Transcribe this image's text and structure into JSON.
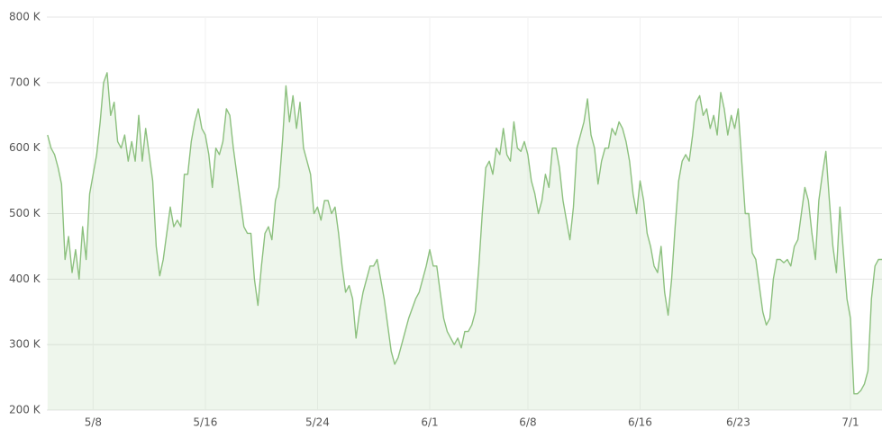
{
  "chart_data": {
    "type": "area",
    "x": [
      4.75,
      5,
      5.25,
      5.5,
      5.75,
      6,
      6.25,
      6.5,
      6.75,
      7,
      7.25,
      7.5,
      7.75,
      8,
      8.25,
      8.5,
      8.75,
      9,
      9.25,
      9.5,
      9.75,
      10,
      10.25,
      10.5,
      10.75,
      11,
      11.25,
      11.5,
      11.75,
      12,
      12.25,
      12.5,
      12.75,
      13,
      13.25,
      13.5,
      13.75,
      14,
      14.25,
      14.5,
      14.75,
      15,
      15.25,
      15.5,
      15.75,
      16,
      16.25,
      16.5,
      16.75,
      17,
      17.25,
      17.5,
      17.75,
      18,
      18.25,
      18.5,
      18.75,
      19,
      19.25,
      19.5,
      19.75,
      20,
      20.25,
      20.5,
      20.75,
      21,
      21.25,
      21.5,
      21.75,
      22,
      22.25,
      22.5,
      22.75,
      23,
      23.25,
      23.5,
      23.75,
      24,
      24.25,
      24.5,
      24.75,
      25,
      25.25,
      25.5,
      25.75,
      26,
      26.25,
      26.5,
      26.75,
      27,
      27.25,
      27.5,
      27.75,
      28,
      28.25,
      28.5,
      28.75,
      29,
      29.25,
      29.5,
      29.75,
      30,
      30.25,
      30.5,
      30.75,
      31,
      31.25,
      31.5,
      31.75,
      32,
      32.25,
      32.5,
      32.75,
      33,
      33.25,
      33.5,
      33.75,
      34,
      34.25,
      34.5,
      34.75,
      35,
      35.25,
      35.5,
      35.75,
      36,
      36.25,
      36.5,
      36.75,
      37,
      37.25,
      37.5,
      37.75,
      38,
      38.25,
      38.5,
      38.75,
      39,
      39.25,
      39.5,
      39.75,
      40,
      40.25,
      40.5,
      40.75,
      41,
      41.25,
      41.5,
      41.75,
      42,
      42.25,
      42.5,
      42.75,
      43,
      43.25,
      43.5,
      43.75,
      44,
      44.25,
      44.5,
      44.75,
      45,
      45.25,
      45.5,
      45.75,
      46,
      46.25,
      46.5,
      46.75,
      47,
      47.25,
      47.5,
      47.75,
      48,
      48.25,
      48.5,
      48.75,
      49,
      49.25,
      49.5,
      49.75,
      50,
      50.25,
      50.5,
      50.75,
      51,
      51.25,
      51.5,
      51.75,
      52,
      52.25,
      52.5,
      52.75,
      53,
      53.25,
      53.5,
      53.75,
      54,
      54.25,
      54.5,
      54.75,
      55,
      55.25,
      55.5,
      55.75,
      56,
      56.25,
      56.5,
      56.75,
      57,
      57.25,
      57.5,
      57.75,
      58,
      58.25,
      58.5,
      58.75,
      59,
      59.25,
      59.5,
      59.75,
      60,
      60.25,
      60.5,
      60.75,
      61,
      61.25,
      61.5,
      61.75,
      62,
      62.25,
      62.5,
      62.75,
      63,
      63.25,
      63.5,
      63.75,
      64,
      64.25
    ],
    "values": [
      620000,
      600000,
      590000,
      570000,
      545000,
      430000,
      465000,
      410000,
      445000,
      400000,
      480000,
      430000,
      530000,
      560000,
      590000,
      640000,
      700000,
      715000,
      650000,
      670000,
      610000,
      600000,
      620000,
      580000,
      610000,
      580000,
      650000,
      580000,
      630000,
      590000,
      550000,
      450000,
      405000,
      430000,
      470000,
      510000,
      480000,
      490000,
      480000,
      560000,
      560000,
      610000,
      640000,
      660000,
      630000,
      620000,
      590000,
      540000,
      600000,
      590000,
      610000,
      660000,
      650000,
      600000,
      560000,
      520000,
      480000,
      470000,
      470000,
      400000,
      360000,
      420000,
      470000,
      480000,
      460000,
      520000,
      540000,
      610000,
      695000,
      640000,
      680000,
      630000,
      670000,
      600000,
      580000,
      560000,
      500000,
      510000,
      490000,
      520000,
      520000,
      500000,
      510000,
      470000,
      420000,
      380000,
      390000,
      370000,
      310000,
      350000,
      380000,
      400000,
      420000,
      420000,
      430000,
      400000,
      370000,
      330000,
      290000,
      270000,
      280000,
      300000,
      320000,
      340000,
      355000,
      370000,
      380000,
      400000,
      420000,
      445000,
      420000,
      420000,
      380000,
      340000,
      320000,
      310000,
      300000,
      310000,
      295000,
      320000,
      320000,
      330000,
      350000,
      420000,
      500000,
      570000,
      580000,
      560000,
      600000,
      590000,
      630000,
      590000,
      580000,
      640000,
      600000,
      595000,
      610000,
      590000,
      550000,
      530000,
      500000,
      520000,
      560000,
      540000,
      600000,
      600000,
      570000,
      520000,
      490000,
      460000,
      510000,
      600000,
      620000,
      640000,
      675000,
      620000,
      600000,
      545000,
      580000,
      600000,
      600000,
      630000,
      620000,
      640000,
      630000,
      610000,
      580000,
      530000,
      500000,
      550000,
      520000,
      470000,
      450000,
      420000,
      410000,
      450000,
      380000,
      345000,
      400000,
      480000,
      550000,
      580000,
      590000,
      580000,
      620000,
      670000,
      680000,
      650000,
      660000,
      630000,
      650000,
      620000,
      685000,
      660000,
      620000,
      650000,
      630000,
      660000,
      580000,
      500000,
      500000,
      440000,
      430000,
      390000,
      350000,
      330000,
      340000,
      400000,
      430000,
      430000,
      425000,
      430000,
      420000,
      450000,
      460000,
      500000,
      540000,
      520000,
      470000,
      430000,
      520000,
      560000,
      595000,
      520000,
      450000,
      410000,
      510000,
      440000,
      370000,
      340000,
      225000,
      225000,
      230000,
      240000,
      260000,
      370000,
      420000,
      430000,
      430000
    ],
    "color": "#8cc07e",
    "xlim": [
      4.7,
      64.25
    ],
    "xticks": [
      {
        "value": 8,
        "label": "5/8"
      },
      {
        "value": 16,
        "label": "5/16"
      },
      {
        "value": 24,
        "label": "5/24"
      },
      {
        "value": 32,
        "label": "6/1"
      },
      {
        "value": 39,
        "label": "6/8"
      },
      {
        "value": 47,
        "label": "6/16"
      },
      {
        "value": 54,
        "label": "6/23"
      },
      {
        "value": 62,
        "label": "7/1"
      }
    ],
    "ylim": [
      200000,
      800000
    ],
    "yticks": [
      {
        "value": 200000,
        "label": "200 K"
      },
      {
        "value": 300000,
        "label": "300 K"
      },
      {
        "value": 400000,
        "label": "400 K"
      },
      {
        "value": 500000,
        "label": "500 K"
      },
      {
        "value": 600000,
        "label": "600 K"
      },
      {
        "value": 700000,
        "label": "700 K"
      },
      {
        "value": 800000,
        "label": "800 K"
      }
    ],
    "grid": true
  }
}
